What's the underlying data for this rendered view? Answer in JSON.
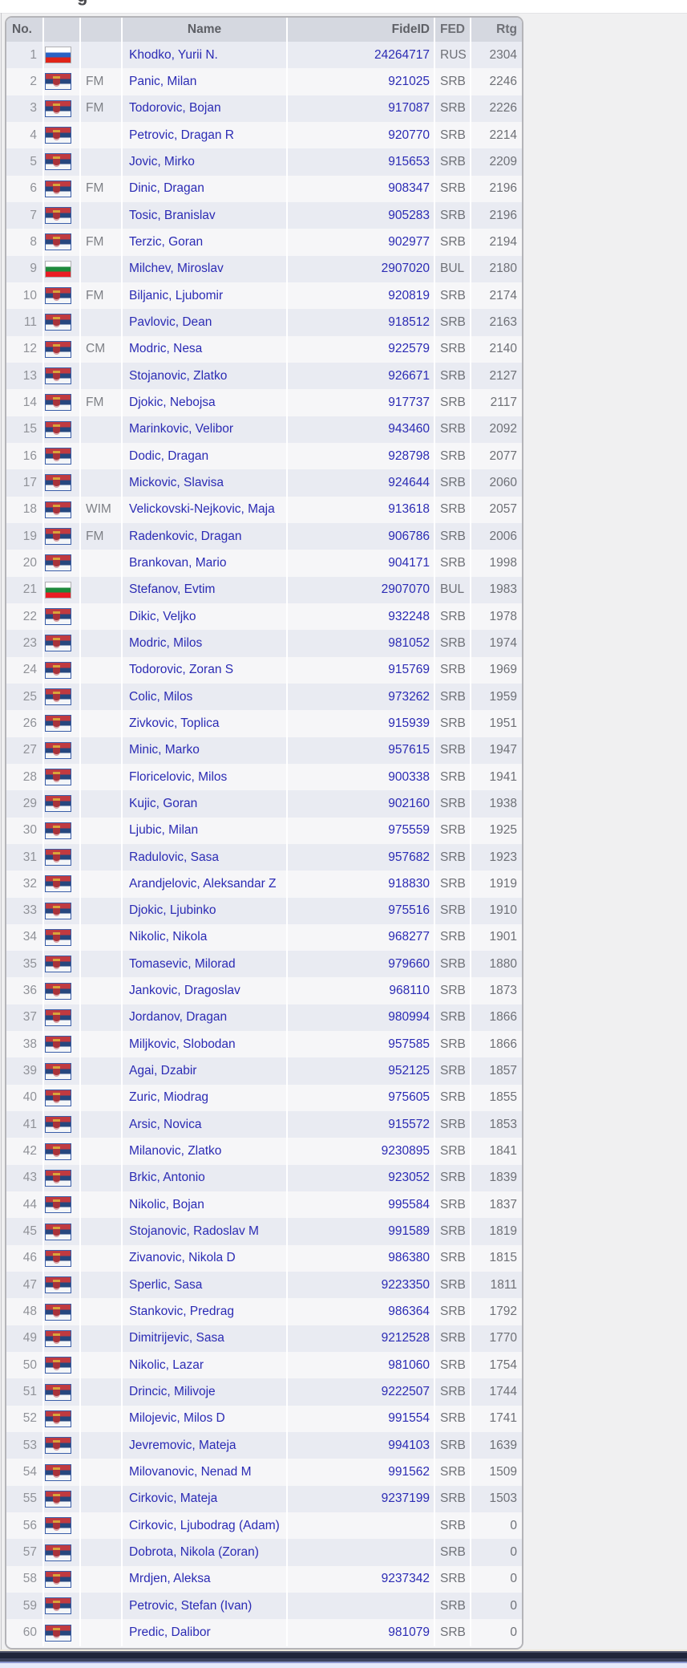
{
  "page": {
    "clipped_heading_glyph": "g"
  },
  "colors": {
    "link_blue": "#2b2bb4",
    "header_bg": "#d5d8e0",
    "row_odd_bg": "#e9ebf2",
    "row_even_bg": "#f6f6f8",
    "page_bg": "#f0f0f1",
    "muted_text": "#6e7076",
    "bottom_bar": "#20253a"
  },
  "table": {
    "headers": {
      "no": "No.",
      "flag": "",
      "title": "",
      "name": "Name",
      "fideid": "FideID",
      "fed": "FED",
      "rtg": "Rtg"
    },
    "players": [
      {
        "no": "1",
        "flag": "RUS",
        "title": "",
        "name": "Khodko, Yurii N.",
        "fideid": "24264717",
        "fed": "RUS",
        "rtg": "2304"
      },
      {
        "no": "2",
        "flag": "SRB",
        "title": "FM",
        "name": "Panic, Milan",
        "fideid": "921025",
        "fed": "SRB",
        "rtg": "2246"
      },
      {
        "no": "3",
        "flag": "SRB",
        "title": "FM",
        "name": "Todorovic, Bojan",
        "fideid": "917087",
        "fed": "SRB",
        "rtg": "2226"
      },
      {
        "no": "4",
        "flag": "SRB",
        "title": "",
        "name": "Petrovic, Dragan R",
        "fideid": "920770",
        "fed": "SRB",
        "rtg": "2214"
      },
      {
        "no": "5",
        "flag": "SRB",
        "title": "",
        "name": "Jovic, Mirko",
        "fideid": "915653",
        "fed": "SRB",
        "rtg": "2209"
      },
      {
        "no": "6",
        "flag": "SRB",
        "title": "FM",
        "name": "Dinic, Dragan",
        "fideid": "908347",
        "fed": "SRB",
        "rtg": "2196"
      },
      {
        "no": "7",
        "flag": "SRB",
        "title": "",
        "name": "Tosic, Branislav",
        "fideid": "905283",
        "fed": "SRB",
        "rtg": "2196"
      },
      {
        "no": "8",
        "flag": "SRB",
        "title": "FM",
        "name": "Terzic, Goran",
        "fideid": "902977",
        "fed": "SRB",
        "rtg": "2194"
      },
      {
        "no": "9",
        "flag": "BUL",
        "title": "",
        "name": "Milchev, Miroslav",
        "fideid": "2907020",
        "fed": "BUL",
        "rtg": "2180"
      },
      {
        "no": "10",
        "flag": "SRB",
        "title": "FM",
        "name": "Biljanic, Ljubomir",
        "fideid": "920819",
        "fed": "SRB",
        "rtg": "2174"
      },
      {
        "no": "11",
        "flag": "SRB",
        "title": "",
        "name": "Pavlovic, Dean",
        "fideid": "918512",
        "fed": "SRB",
        "rtg": "2163"
      },
      {
        "no": "12",
        "flag": "SRB",
        "title": "CM",
        "name": "Modric, Nesa",
        "fideid": "922579",
        "fed": "SRB",
        "rtg": "2140"
      },
      {
        "no": "13",
        "flag": "SRB",
        "title": "",
        "name": "Stojanovic, Zlatko",
        "fideid": "926671",
        "fed": "SRB",
        "rtg": "2127"
      },
      {
        "no": "14",
        "flag": "SRB",
        "title": "FM",
        "name": "Djokic, Nebojsa",
        "fideid": "917737",
        "fed": "SRB",
        "rtg": "2117"
      },
      {
        "no": "15",
        "flag": "SRB",
        "title": "",
        "name": "Marinkovic, Velibor",
        "fideid": "943460",
        "fed": "SRB",
        "rtg": "2092"
      },
      {
        "no": "16",
        "flag": "SRB",
        "title": "",
        "name": "Dodic, Dragan",
        "fideid": "928798",
        "fed": "SRB",
        "rtg": "2077"
      },
      {
        "no": "17",
        "flag": "SRB",
        "title": "",
        "name": "Mickovic, Slavisa",
        "fideid": "924644",
        "fed": "SRB",
        "rtg": "2060"
      },
      {
        "no": "18",
        "flag": "SRB",
        "title": "WIM",
        "name": "Velickovski-Nejkovic, Maja",
        "fideid": "913618",
        "fed": "SRB",
        "rtg": "2057"
      },
      {
        "no": "19",
        "flag": "SRB",
        "title": "FM",
        "name": "Radenkovic, Dragan",
        "fideid": "906786",
        "fed": "SRB",
        "rtg": "2006"
      },
      {
        "no": "20",
        "flag": "SRB",
        "title": "",
        "name": "Brankovan, Mario",
        "fideid": "904171",
        "fed": "SRB",
        "rtg": "1998"
      },
      {
        "no": "21",
        "flag": "BUL",
        "title": "",
        "name": "Stefanov, Evtim",
        "fideid": "2907070",
        "fed": "BUL",
        "rtg": "1983"
      },
      {
        "no": "22",
        "flag": "SRB",
        "title": "",
        "name": "Dikic, Veljko",
        "fideid": "932248",
        "fed": "SRB",
        "rtg": "1978"
      },
      {
        "no": "23",
        "flag": "SRB",
        "title": "",
        "name": "Modric, Milos",
        "fideid": "981052",
        "fed": "SRB",
        "rtg": "1974"
      },
      {
        "no": "24",
        "flag": "SRB",
        "title": "",
        "name": "Todorovic, Zoran S",
        "fideid": "915769",
        "fed": "SRB",
        "rtg": "1969"
      },
      {
        "no": "25",
        "flag": "SRB",
        "title": "",
        "name": "Colic, Milos",
        "fideid": "973262",
        "fed": "SRB",
        "rtg": "1959"
      },
      {
        "no": "26",
        "flag": "SRB",
        "title": "",
        "name": "Zivkovic, Toplica",
        "fideid": "915939",
        "fed": "SRB",
        "rtg": "1951"
      },
      {
        "no": "27",
        "flag": "SRB",
        "title": "",
        "name": "Minic, Marko",
        "fideid": "957615",
        "fed": "SRB",
        "rtg": "1947"
      },
      {
        "no": "28",
        "flag": "SRB",
        "title": "",
        "name": "Floricelovic, Milos",
        "fideid": "900338",
        "fed": "SRB",
        "rtg": "1941"
      },
      {
        "no": "29",
        "flag": "SRB",
        "title": "",
        "name": "Kujic, Goran",
        "fideid": "902160",
        "fed": "SRB",
        "rtg": "1938"
      },
      {
        "no": "30",
        "flag": "SRB",
        "title": "",
        "name": "Ljubic, Milan",
        "fideid": "975559",
        "fed": "SRB",
        "rtg": "1925"
      },
      {
        "no": "31",
        "flag": "SRB",
        "title": "",
        "name": "Radulovic, Sasa",
        "fideid": "957682",
        "fed": "SRB",
        "rtg": "1923"
      },
      {
        "no": "32",
        "flag": "SRB",
        "title": "",
        "name": "Arandjelovic, Aleksandar Z",
        "fideid": "918830",
        "fed": "SRB",
        "rtg": "1919"
      },
      {
        "no": "33",
        "flag": "SRB",
        "title": "",
        "name": "Djokic, Ljubinko",
        "fideid": "975516",
        "fed": "SRB",
        "rtg": "1910"
      },
      {
        "no": "34",
        "flag": "SRB",
        "title": "",
        "name": "Nikolic, Nikola",
        "fideid": "968277",
        "fed": "SRB",
        "rtg": "1901"
      },
      {
        "no": "35",
        "flag": "SRB",
        "title": "",
        "name": "Tomasevic, Milorad",
        "fideid": "979660",
        "fed": "SRB",
        "rtg": "1880"
      },
      {
        "no": "36",
        "flag": "SRB",
        "title": "",
        "name": "Jankovic, Dragoslav",
        "fideid": "968110",
        "fed": "SRB",
        "rtg": "1873"
      },
      {
        "no": "37",
        "flag": "SRB",
        "title": "",
        "name": "Jordanov, Dragan",
        "fideid": "980994",
        "fed": "SRB",
        "rtg": "1866"
      },
      {
        "no": "38",
        "flag": "SRB",
        "title": "",
        "name": "Miljkovic, Slobodan",
        "fideid": "957585",
        "fed": "SRB",
        "rtg": "1866"
      },
      {
        "no": "39",
        "flag": "SRB",
        "title": "",
        "name": "Agai, Dzabir",
        "fideid": "952125",
        "fed": "SRB",
        "rtg": "1857"
      },
      {
        "no": "40",
        "flag": "SRB",
        "title": "",
        "name": "Zuric, Miodrag",
        "fideid": "975605",
        "fed": "SRB",
        "rtg": "1855"
      },
      {
        "no": "41",
        "flag": "SRB",
        "title": "",
        "name": "Arsic, Novica",
        "fideid": "915572",
        "fed": "SRB",
        "rtg": "1853"
      },
      {
        "no": "42",
        "flag": "SRB",
        "title": "",
        "name": "Milanovic, Zlatko",
        "fideid": "9230895",
        "fed": "SRB",
        "rtg": "1841"
      },
      {
        "no": "43",
        "flag": "SRB",
        "title": "",
        "name": "Brkic, Antonio",
        "fideid": "923052",
        "fed": "SRB",
        "rtg": "1839"
      },
      {
        "no": "44",
        "flag": "SRB",
        "title": "",
        "name": "Nikolic, Bojan",
        "fideid": "995584",
        "fed": "SRB",
        "rtg": "1837"
      },
      {
        "no": "45",
        "flag": "SRB",
        "title": "",
        "name": "Stojanovic, Radoslav M",
        "fideid": "991589",
        "fed": "SRB",
        "rtg": "1819"
      },
      {
        "no": "46",
        "flag": "SRB",
        "title": "",
        "name": "Zivanovic, Nikola D",
        "fideid": "986380",
        "fed": "SRB",
        "rtg": "1815"
      },
      {
        "no": "47",
        "flag": "SRB",
        "title": "",
        "name": "Sperlic, Sasa",
        "fideid": "9223350",
        "fed": "SRB",
        "rtg": "1811"
      },
      {
        "no": "48",
        "flag": "SRB",
        "title": "",
        "name": "Stankovic, Predrag",
        "fideid": "986364",
        "fed": "SRB",
        "rtg": "1792"
      },
      {
        "no": "49",
        "flag": "SRB",
        "title": "",
        "name": "Dimitrijevic, Sasa",
        "fideid": "9212528",
        "fed": "SRB",
        "rtg": "1770"
      },
      {
        "no": "50",
        "flag": "SRB",
        "title": "",
        "name": "Nikolic, Lazar",
        "fideid": "981060",
        "fed": "SRB",
        "rtg": "1754"
      },
      {
        "no": "51",
        "flag": "SRB",
        "title": "",
        "name": "Drincic, Milivoje",
        "fideid": "9222507",
        "fed": "SRB",
        "rtg": "1744"
      },
      {
        "no": "52",
        "flag": "SRB",
        "title": "",
        "name": "Milojevic, Milos D",
        "fideid": "991554",
        "fed": "SRB",
        "rtg": "1741"
      },
      {
        "no": "53",
        "flag": "SRB",
        "title": "",
        "name": "Jevremovic, Mateja",
        "fideid": "994103",
        "fed": "SRB",
        "rtg": "1639"
      },
      {
        "no": "54",
        "flag": "SRB",
        "title": "",
        "name": "Milovanovic, Nenad M",
        "fideid": "991562",
        "fed": "SRB",
        "rtg": "1509"
      },
      {
        "no": "55",
        "flag": "SRB",
        "title": "",
        "name": "Cirkovic, Mateja",
        "fideid": "9237199",
        "fed": "SRB",
        "rtg": "1503"
      },
      {
        "no": "56",
        "flag": "SRB",
        "title": "",
        "name": "Cirkovic, Ljubodrag (Adam)",
        "fideid": "",
        "fed": "SRB",
        "rtg": "0"
      },
      {
        "no": "57",
        "flag": "SRB",
        "title": "",
        "name": "Dobrota, Nikola (Zoran)",
        "fideid": "",
        "fed": "SRB",
        "rtg": "0"
      },
      {
        "no": "58",
        "flag": "SRB",
        "title": "",
        "name": "Mrdjen, Aleksa",
        "fideid": "9237342",
        "fed": "SRB",
        "rtg": "0"
      },
      {
        "no": "59",
        "flag": "SRB",
        "title": "",
        "name": "Petrovic, Stefan (Ivan)",
        "fideid": "",
        "fed": "SRB",
        "rtg": "0"
      },
      {
        "no": "60",
        "flag": "SRB",
        "title": "",
        "name": "Predic, Dalibor",
        "fideid": "981079",
        "fed": "SRB",
        "rtg": "0"
      }
    ]
  }
}
